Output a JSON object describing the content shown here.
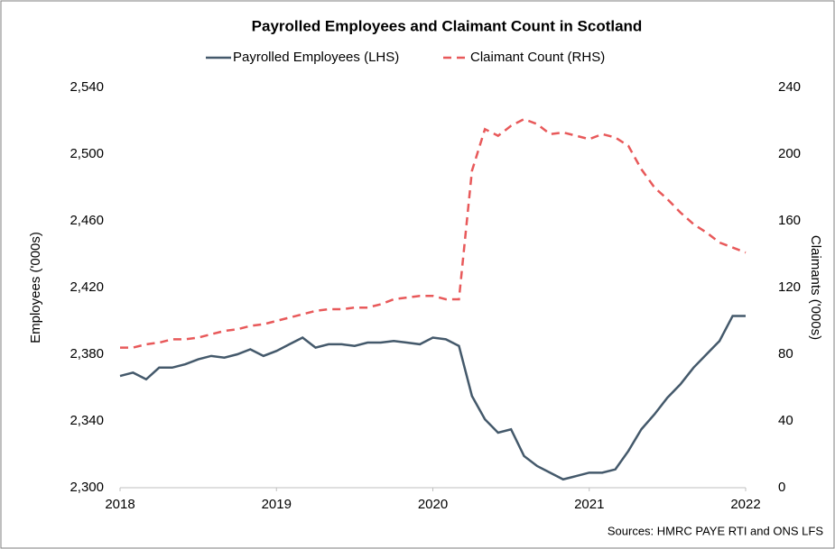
{
  "chart_data": {
    "type": "line",
    "title": "Payrolled Employees and Claimant Count in Scotland",
    "ylabel": "Employees ('000s)",
    "y2label": "Claimants ('000s)",
    "source": "Sources: HMRC PAYE RTI and ONS LFS",
    "legend": "top",
    "x": [
      2018,
      2018.083,
      2018.167,
      2018.25,
      2018.333,
      2018.417,
      2018.5,
      2018.583,
      2018.667,
      2018.75,
      2018.833,
      2018.917,
      2019,
      2019.083,
      2019.167,
      2019.25,
      2019.333,
      2019.417,
      2019.5,
      2019.583,
      2019.667,
      2019.75,
      2019.833,
      2019.917,
      2020,
      2020.083,
      2020.167,
      2020.25,
      2020.333,
      2020.417,
      2020.5,
      2020.583,
      2020.667,
      2020.75,
      2020.833,
      2020.917,
      2021,
      2021.083,
      2021.167,
      2021.25,
      2021.333,
      2021.417,
      2021.5,
      2021.583,
      2021.667,
      2021.75,
      2021.833,
      2021.917,
      2022
    ],
    "xlim": [
      2018,
      2022
    ],
    "xticks": [
      2018,
      2019,
      2020,
      2021,
      2022
    ],
    "ylim": [
      2300,
      2540
    ],
    "yticks": [
      {
        "value": 2300,
        "label": "2,300"
      },
      {
        "value": 2340,
        "label": "2,340"
      },
      {
        "value": 2380,
        "label": "2,380"
      },
      {
        "value": 2420,
        "label": "2,420"
      },
      {
        "value": 2460,
        "label": "2,460"
      },
      {
        "value": 2500,
        "label": "2,500"
      },
      {
        "value": 2540,
        "label": "2,540"
      }
    ],
    "y2lim": [
      0,
      240
    ],
    "y2ticks": [
      0,
      40,
      80,
      120,
      160,
      200,
      240
    ],
    "series": [
      {
        "name": "Payrolled Employees (LHS)",
        "color": "#44596b",
        "dashed": false,
        "values": [
          2367,
          2369,
          2365,
          2372,
          2372,
          2374,
          2377,
          2379,
          2378,
          2380,
          2383,
          2379,
          2382,
          2386,
          2390,
          2384,
          2386,
          2386,
          2385,
          2387,
          2387,
          2388,
          2387,
          2386,
          2390,
          2389,
          2385,
          2355,
          2341,
          2333,
          2335,
          2319,
          2313,
          2309,
          2305,
          2307,
          2309,
          2309,
          2311,
          2322,
          2335,
          2344,
          2354,
          2362,
          2372,
          2380,
          2388,
          2403,
          2403
        ]
      },
      {
        "name": "Claimant Count (RHS)",
        "color": "#e8595a",
        "dashed": true,
        "axis": "y2",
        "values": [
          84,
          84,
          86,
          87,
          89,
          89,
          90,
          92,
          94,
          95,
          97,
          98,
          100,
          102,
          104,
          106,
          107,
          107,
          108,
          108,
          110,
          113,
          114,
          115,
          115,
          113,
          113,
          190,
          215,
          211,
          217,
          221,
          218,
          212,
          213,
          211,
          209,
          212,
          210,
          205,
          191,
          180,
          173,
          165,
          158,
          153,
          147,
          144,
          141
        ]
      }
    ]
  }
}
